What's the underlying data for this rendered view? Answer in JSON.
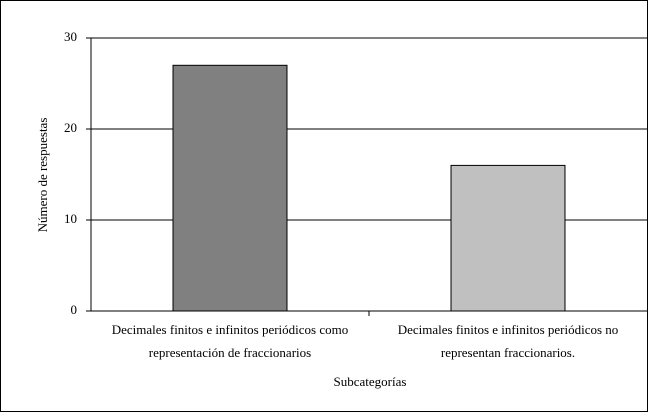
{
  "chart_data": {
    "type": "bar",
    "categories": [
      "Decimales finitos e infinitos periódicos como representación de fraccionarios",
      "Decimales finitos e infinitos periódicos no representan fraccionarios."
    ],
    "values": [
      27,
      16
    ],
    "colors": [
      "#808080",
      "#c0c0c0"
    ],
    "ylabel": "Número de respuestas",
    "xlabel": "Subcategorías",
    "ylim": [
      0,
      30
    ],
    "yticks": [
      0,
      10,
      20,
      30
    ],
    "grid": true
  }
}
